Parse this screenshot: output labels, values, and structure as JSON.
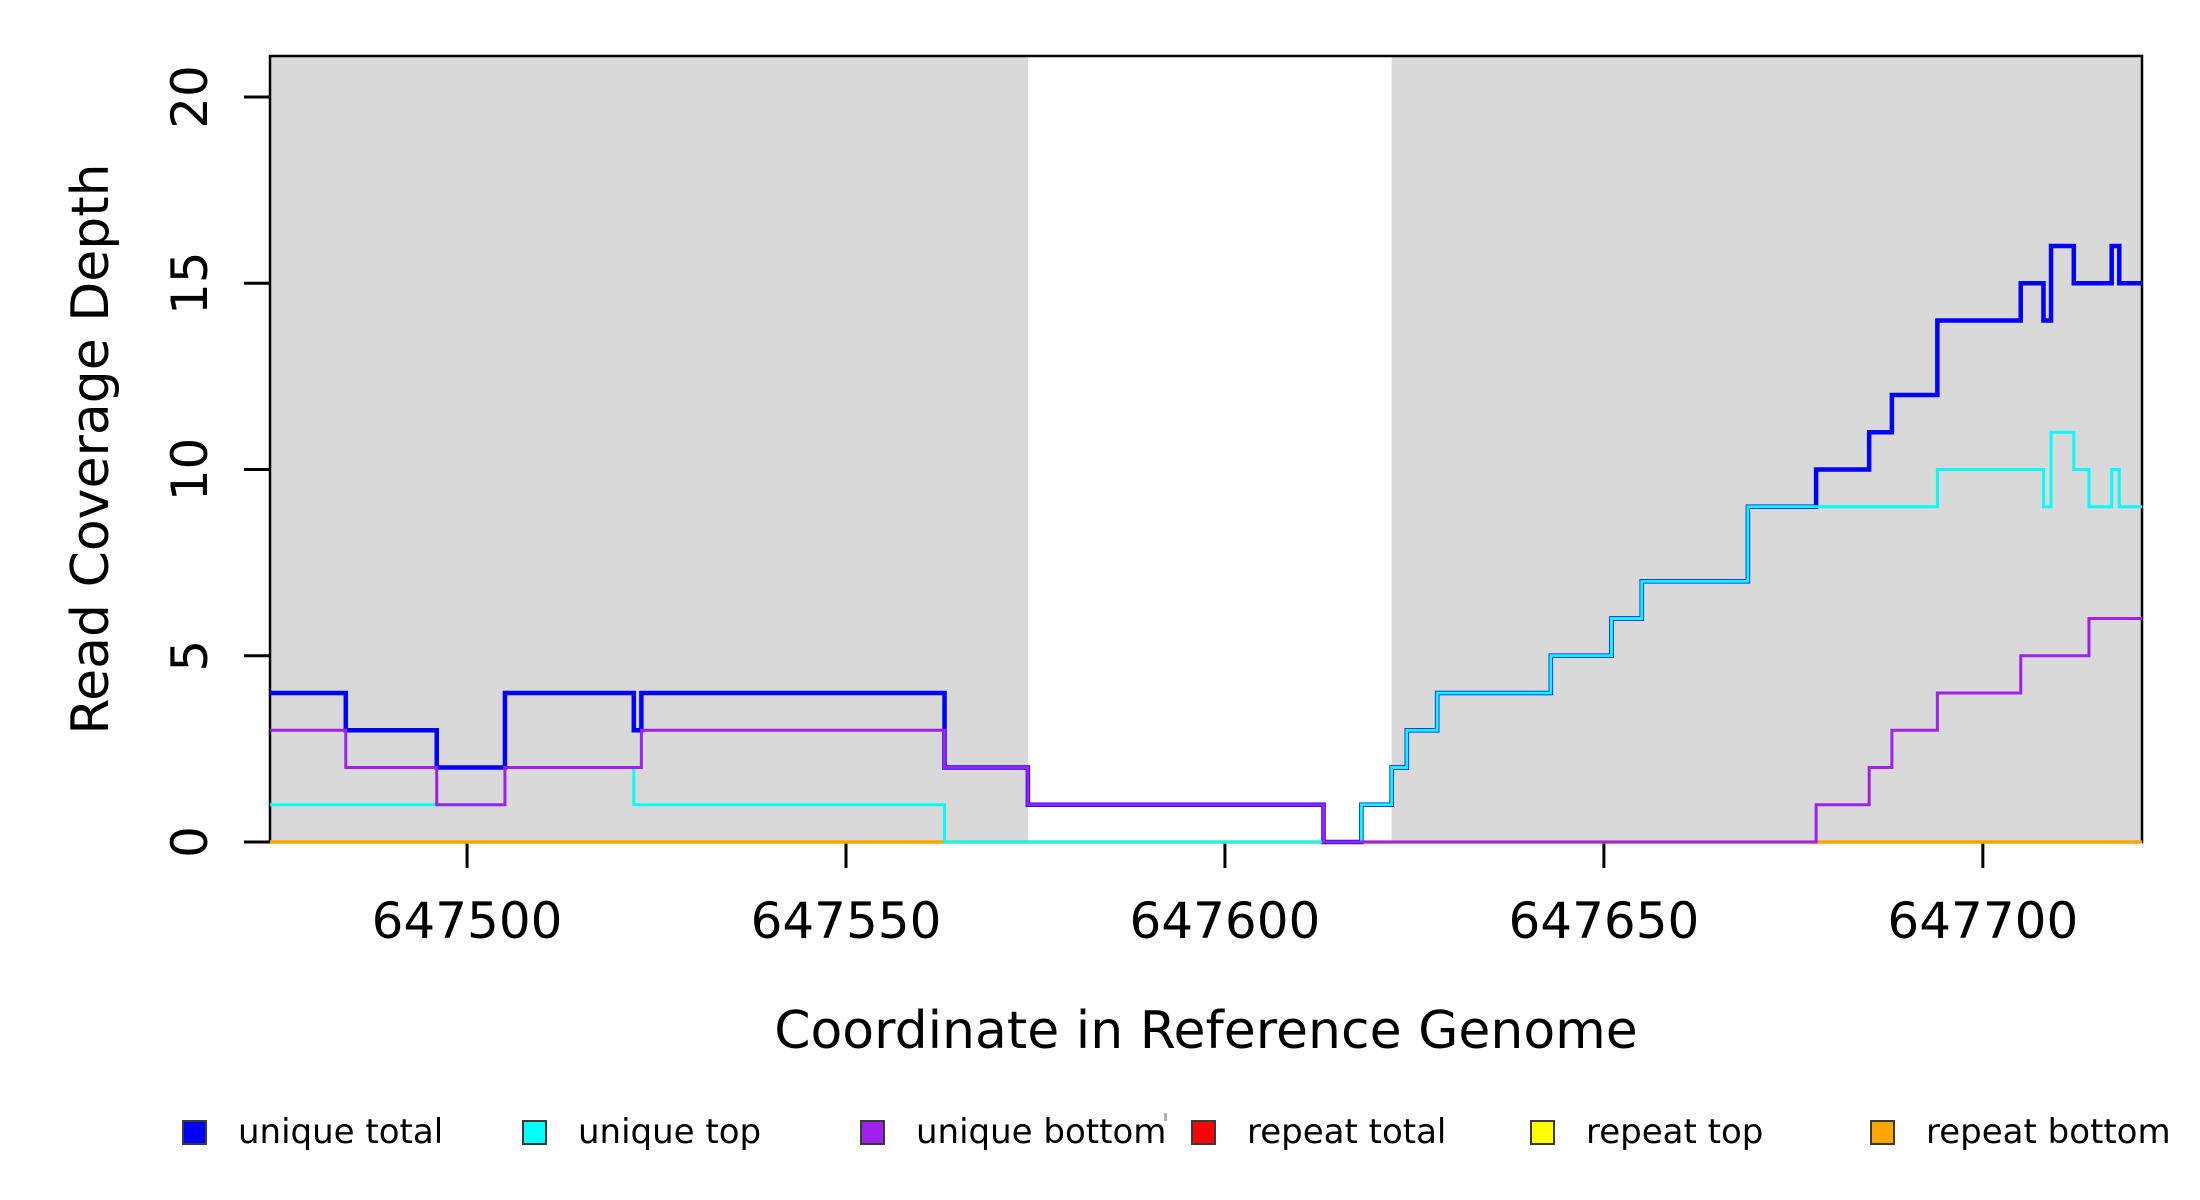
{
  "figure": {
    "background": "#ffffff",
    "plot_background": "#ffffff"
  },
  "legend": {
    "items": [
      {
        "label": "unique total",
        "color": "#0000FF"
      },
      {
        "label": "unique top",
        "color": "#00FFFF"
      },
      {
        "label": "unique bottom",
        "color": "#A020F0"
      },
      {
        "label": "repeat total",
        "color": "#FF0000"
      },
      {
        "label": "repeat top",
        "color": "#FFFF00"
      },
      {
        "label": "repeat bottom",
        "color": "#FFA500"
      }
    ]
  },
  "chart_data": {
    "type": "line",
    "step": true,
    "title": "",
    "xlabel": "Coordinate in Reference Genome",
    "ylabel": "Read Coverage Depth",
    "x_domain": [
      647474,
      647721
    ],
    "y_domain": [
      0,
      21.1
    ],
    "x_ticks": [
      647500,
      647550,
      647600,
      647650,
      647700
    ],
    "y_ticks": [
      0,
      5,
      10,
      15,
      20
    ],
    "grid": false,
    "legend_position": "bottom",
    "shaded_regions": [
      {
        "x0": 647474,
        "x1": 647574,
        "color": "#D9D9D9"
      },
      {
        "x0": 647622,
        "x1": 647721,
        "color": "#D9D9D9"
      }
    ],
    "draw_order": [
      "repeat total",
      "repeat top",
      "repeat bottom",
      "unique total",
      "unique top",
      "unique bottom"
    ],
    "series": [
      {
        "name": "unique total",
        "color": "#0000FF",
        "points": [
          [
            647474,
            4
          ],
          [
            647484,
            3
          ],
          [
            647496,
            2
          ],
          [
            647505,
            4
          ],
          [
            647522,
            3
          ],
          [
            647523,
            4
          ],
          [
            647563,
            2
          ],
          [
            647574,
            1
          ],
          [
            647613,
            0
          ],
          [
            647618,
            1
          ],
          [
            647622,
            2
          ],
          [
            647624,
            3
          ],
          [
            647628,
            4
          ],
          [
            647643,
            5
          ],
          [
            647651,
            6
          ],
          [
            647655,
            7
          ],
          [
            647669,
            9
          ],
          [
            647678,
            10
          ],
          [
            647685,
            11
          ],
          [
            647688,
            12
          ],
          [
            647694,
            14
          ],
          [
            647705,
            15
          ],
          [
            647708,
            14
          ],
          [
            647709,
            16
          ],
          [
            647712,
            15
          ],
          [
            647717,
            16
          ],
          [
            647718,
            15
          ],
          [
            647721,
            15
          ]
        ]
      },
      {
        "name": "unique top",
        "color": "#00FFFF",
        "points": [
          [
            647474,
            1
          ],
          [
            647505,
            2
          ],
          [
            647522,
            1
          ],
          [
            647563,
            0
          ],
          [
            647618,
            1
          ],
          [
            647622,
            2
          ],
          [
            647624,
            3
          ],
          [
            647628,
            4
          ],
          [
            647643,
            5
          ],
          [
            647651,
            6
          ],
          [
            647655,
            7
          ],
          [
            647669,
            9
          ],
          [
            647694,
            10
          ],
          [
            647708,
            9
          ],
          [
            647709,
            11
          ],
          [
            647712,
            10
          ],
          [
            647714,
            9
          ],
          [
            647717,
            10
          ],
          [
            647718,
            9
          ],
          [
            647721,
            9
          ]
        ]
      },
      {
        "name": "unique bottom",
        "color": "#A020F0",
        "points": [
          [
            647474,
            3
          ],
          [
            647484,
            2
          ],
          [
            647496,
            1
          ],
          [
            647505,
            2
          ],
          [
            647523,
            3
          ],
          [
            647563,
            2
          ],
          [
            647574,
            1
          ],
          [
            647613,
            0
          ],
          [
            647678,
            1
          ],
          [
            647685,
            2
          ],
          [
            647688,
            3
          ],
          [
            647694,
            4
          ],
          [
            647705,
            5
          ],
          [
            647714,
            6
          ],
          [
            647721,
            6
          ]
        ]
      },
      {
        "name": "repeat total",
        "color": "#FF0000",
        "points": [
          [
            647474,
            0
          ],
          [
            647721,
            0
          ]
        ]
      },
      {
        "name": "repeat top",
        "color": "#FFFF00",
        "points": [
          [
            647474,
            0
          ],
          [
            647721,
            0
          ]
        ]
      },
      {
        "name": "repeat bottom",
        "color": "#FFA500",
        "points": [
          [
            647474,
            0
          ],
          [
            647721,
            0
          ]
        ]
      }
    ]
  }
}
